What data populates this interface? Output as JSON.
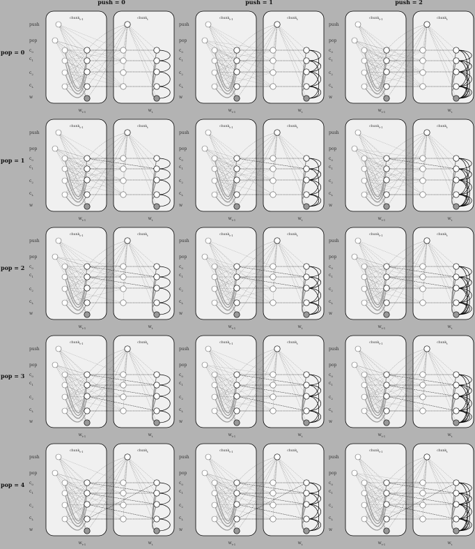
{
  "columns": [
    {
      "label": "push = 0",
      "n": 0
    },
    {
      "label": "push = 1",
      "n": 1
    },
    {
      "label": "push = 2",
      "n": 2
    }
  ],
  "rows": [
    {
      "label": "pop = 0",
      "n": 0
    },
    {
      "label": "pop = 1",
      "n": 1
    },
    {
      "label": "pop = 2",
      "n": 2
    },
    {
      "label": "pop = 3",
      "n": 3
    },
    {
      "label": "pop = 4",
      "n": 4
    }
  ],
  "side_labels": [
    {
      "text": "push",
      "sub": ""
    },
    {
      "text": "pop",
      "sub": ""
    },
    {
      "text": "c",
      "sub": "0"
    },
    {
      "text": "c",
      "sub": "1"
    },
    {
      "text": "c",
      "sub": "2"
    },
    {
      "text": "c",
      "sub": "L"
    },
    {
      "text": "w",
      "sub": ""
    }
  ],
  "chunk_left": {
    "text": "chunk",
    "sub": "t-1"
  },
  "chunk_right": {
    "text": "chunk",
    "sub": "t"
  },
  "word_left": {
    "text": "w",
    "sub": "t-1"
  },
  "word_right": {
    "text": "w",
    "sub": "t"
  },
  "colors": {
    "background": "#b3b3b3",
    "panel_fill": "#f0f0f0",
    "panel_stroke": "#000000",
    "node_fill": "#ffffff",
    "word_node_fill": "#999999",
    "edge_light": "#777777",
    "edge_dark": "#000000"
  }
}
